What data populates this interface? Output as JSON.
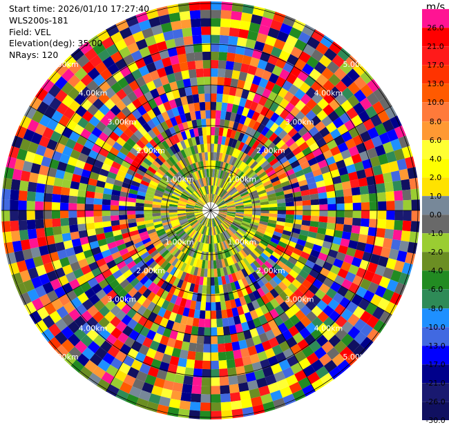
{
  "info": {
    "start_time": "Start time: 2026/01/10 17:27:40",
    "instrument": "WLS200s-181",
    "field": "Field: VEL",
    "elevation": "Elevation(deg): 35.00",
    "nrays": "NRays: 120"
  },
  "range_rings": {
    "labels": [
      "1.00km",
      "2.00km",
      "3.00km",
      "4.00km",
      "5.00km"
    ],
    "label_color": "#ffffff",
    "ring_color": "#000000"
  },
  "colorbar": {
    "unit": "m/s",
    "ticks": [
      "26.0",
      "21.0",
      "17.0",
      "13.0",
      "10.0",
      "8.0",
      "6.0",
      "4.0",
      "2.0",
      "1.0",
      "0.0",
      "-1.0",
      "-2.0",
      "-4.0",
      "-6.0",
      "-8.0",
      "-10.0",
      "-13.0",
      "-17.0",
      "-21.0",
      "-26.0",
      "-30.0"
    ],
    "colors": [
      "#ff1493",
      "#ff0000",
      "#ff1a1a",
      "#ff3300",
      "#ff5a00",
      "#ff7a3a",
      "#ff9933",
      "#ffff33",
      "#ffff00",
      "#ffe200",
      "#778899",
      "#696969",
      "#9acd32",
      "#6b8e23",
      "#228b22",
      "#2e8b57",
      "#1e90ff",
      "#4169e1",
      "#0000ff",
      "#00008b",
      "#191970",
      "#101060"
    ]
  }
}
